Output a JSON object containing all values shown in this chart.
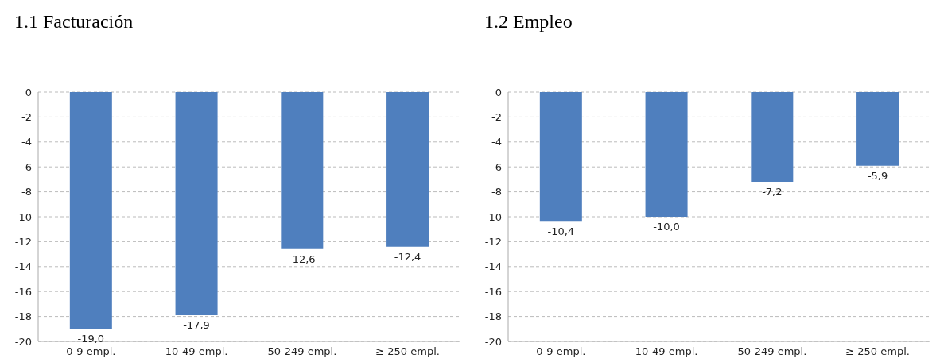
{
  "chart_data": [
    {
      "type": "bar",
      "title": "1.1 Facturación",
      "categories": [
        "0-9 empl.",
        "10-49 empl.",
        "50-249 empl.",
        "≥ 250 empl."
      ],
      "values": [
        -19.0,
        -17.9,
        -12.6,
        -12.4
      ],
      "value_labels": [
        "-19,0",
        "-17,9",
        "-12,6",
        "-12,4"
      ],
      "color": "#4f7fbe",
      "ylim": [
        -20,
        0
      ],
      "yticks": [
        0,
        -2,
        -4,
        -6,
        -8,
        -10,
        -12,
        -14,
        -16,
        -18,
        -20
      ],
      "grid": "y"
    },
    {
      "type": "bar",
      "title": "1.2 Empleo",
      "categories": [
        "0-9 empl.",
        "10-49 empl.",
        "50-249 empl.",
        "≥ 250 empl."
      ],
      "values": [
        -10.4,
        -10.0,
        -7.2,
        -5.9
      ],
      "value_labels": [
        "-10,4",
        "-10,0",
        "-7,2",
        "-5,9"
      ],
      "color": "#4f7fbe",
      "ylim": [
        -20,
        0
      ],
      "yticks": [
        0,
        -2,
        -4,
        -6,
        -8,
        -10,
        -12,
        -14,
        -16,
        -18,
        -20
      ],
      "grid": "y"
    }
  ]
}
